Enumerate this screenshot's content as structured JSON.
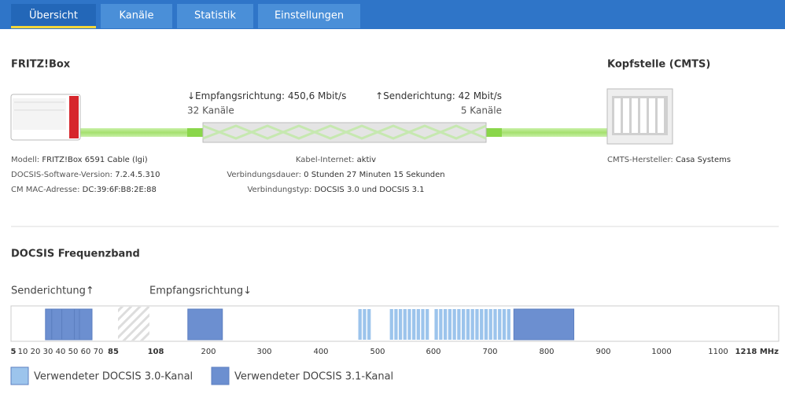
{
  "tabs": [
    "Übersicht",
    "Kanäle",
    "Statistik",
    "Einstellungen"
  ],
  "overview": {
    "device_title": "FRITZ!Box",
    "cmts_title": "Kopfstelle (CMTS)",
    "downstream": {
      "label": "↓Empfangsrichtung:",
      "rate": "450,6 Mbit/s",
      "channels": "32 Kanäle"
    },
    "upstream": {
      "label": "↑Senderichtung:",
      "rate": "42 Mbit/s",
      "channels": "5 Kanäle"
    },
    "device_info": [
      {
        "label": "Modell:",
        "value": "FRITZ!Box 6591 Cable (lgi)"
      },
      {
        "label": "DOCSIS-Software-Version:",
        "value": "7.2.4.5.310"
      },
      {
        "label": "CM MAC-Adresse:",
        "value": "DC:39:6F:B8:2E:88"
      }
    ],
    "connection_info": [
      {
        "label": "Kabel-Internet:",
        "value": "aktiv"
      },
      {
        "label": "Verbindungsdauer:",
        "value": "0 Stunden 27 Minuten 15 Sekunden"
      },
      {
        "label": "Verbindungstyp:",
        "value": "DOCSIS 3.0 und DOCSIS 3.1"
      }
    ],
    "cmts_info": [
      {
        "label": "CMTS-Hersteller:",
        "value": "Casa Systems"
      }
    ]
  },
  "frequency_band": {
    "title": "DOCSIS Frequenzband",
    "upstream_label": "Senderichtung↑",
    "downstream_label": "Empfangsrichtung↓",
    "ticks": [
      5,
      10,
      20,
      30,
      40,
      50,
      60,
      70,
      85,
      108,
      200,
      300,
      400,
      500,
      600,
      700,
      800,
      900,
      1000,
      1100,
      {
        "value": 1218,
        "label": "1218 MHz"
      }
    ],
    "docsis30": [
      [
        466,
        472
      ],
      [
        474,
        480
      ],
      [
        482,
        488
      ],
      [
        522,
        528
      ],
      [
        530,
        536
      ],
      [
        538,
        544
      ],
      [
        546,
        552
      ],
      [
        554,
        560
      ],
      [
        562,
        568
      ],
      [
        570,
        576
      ],
      [
        578,
        584
      ],
      [
        586,
        592
      ],
      [
        602,
        608
      ],
      [
        610,
        616
      ],
      [
        618,
        624
      ],
      [
        626,
        632
      ],
      [
        634,
        640
      ],
      [
        642,
        648
      ],
      [
        650,
        656
      ],
      [
        658,
        664
      ],
      [
        666,
        672
      ],
      [
        674,
        680
      ],
      [
        682,
        688
      ],
      [
        690,
        696
      ],
      [
        698,
        704
      ],
      [
        706,
        712
      ],
      [
        714,
        720
      ],
      [
        722,
        728
      ],
      [
        730,
        736
      ]
    ],
    "docsis31": [
      [
        28,
        33
      ],
      [
        33,
        41
      ],
      [
        41,
        51
      ],
      [
        51,
        55
      ],
      [
        55,
        65
      ],
      [
        164,
        225
      ],
      [
        742,
        848
      ]
    ],
    "legend": [
      {
        "name": "Verwendeter DOCSIS 3.0-Kanal",
        "color": "#9cc4ec"
      },
      {
        "name": "Verwendeter DOCSIS 3.1-Kanal",
        "color": "#6c8fd0"
      }
    ]
  }
}
